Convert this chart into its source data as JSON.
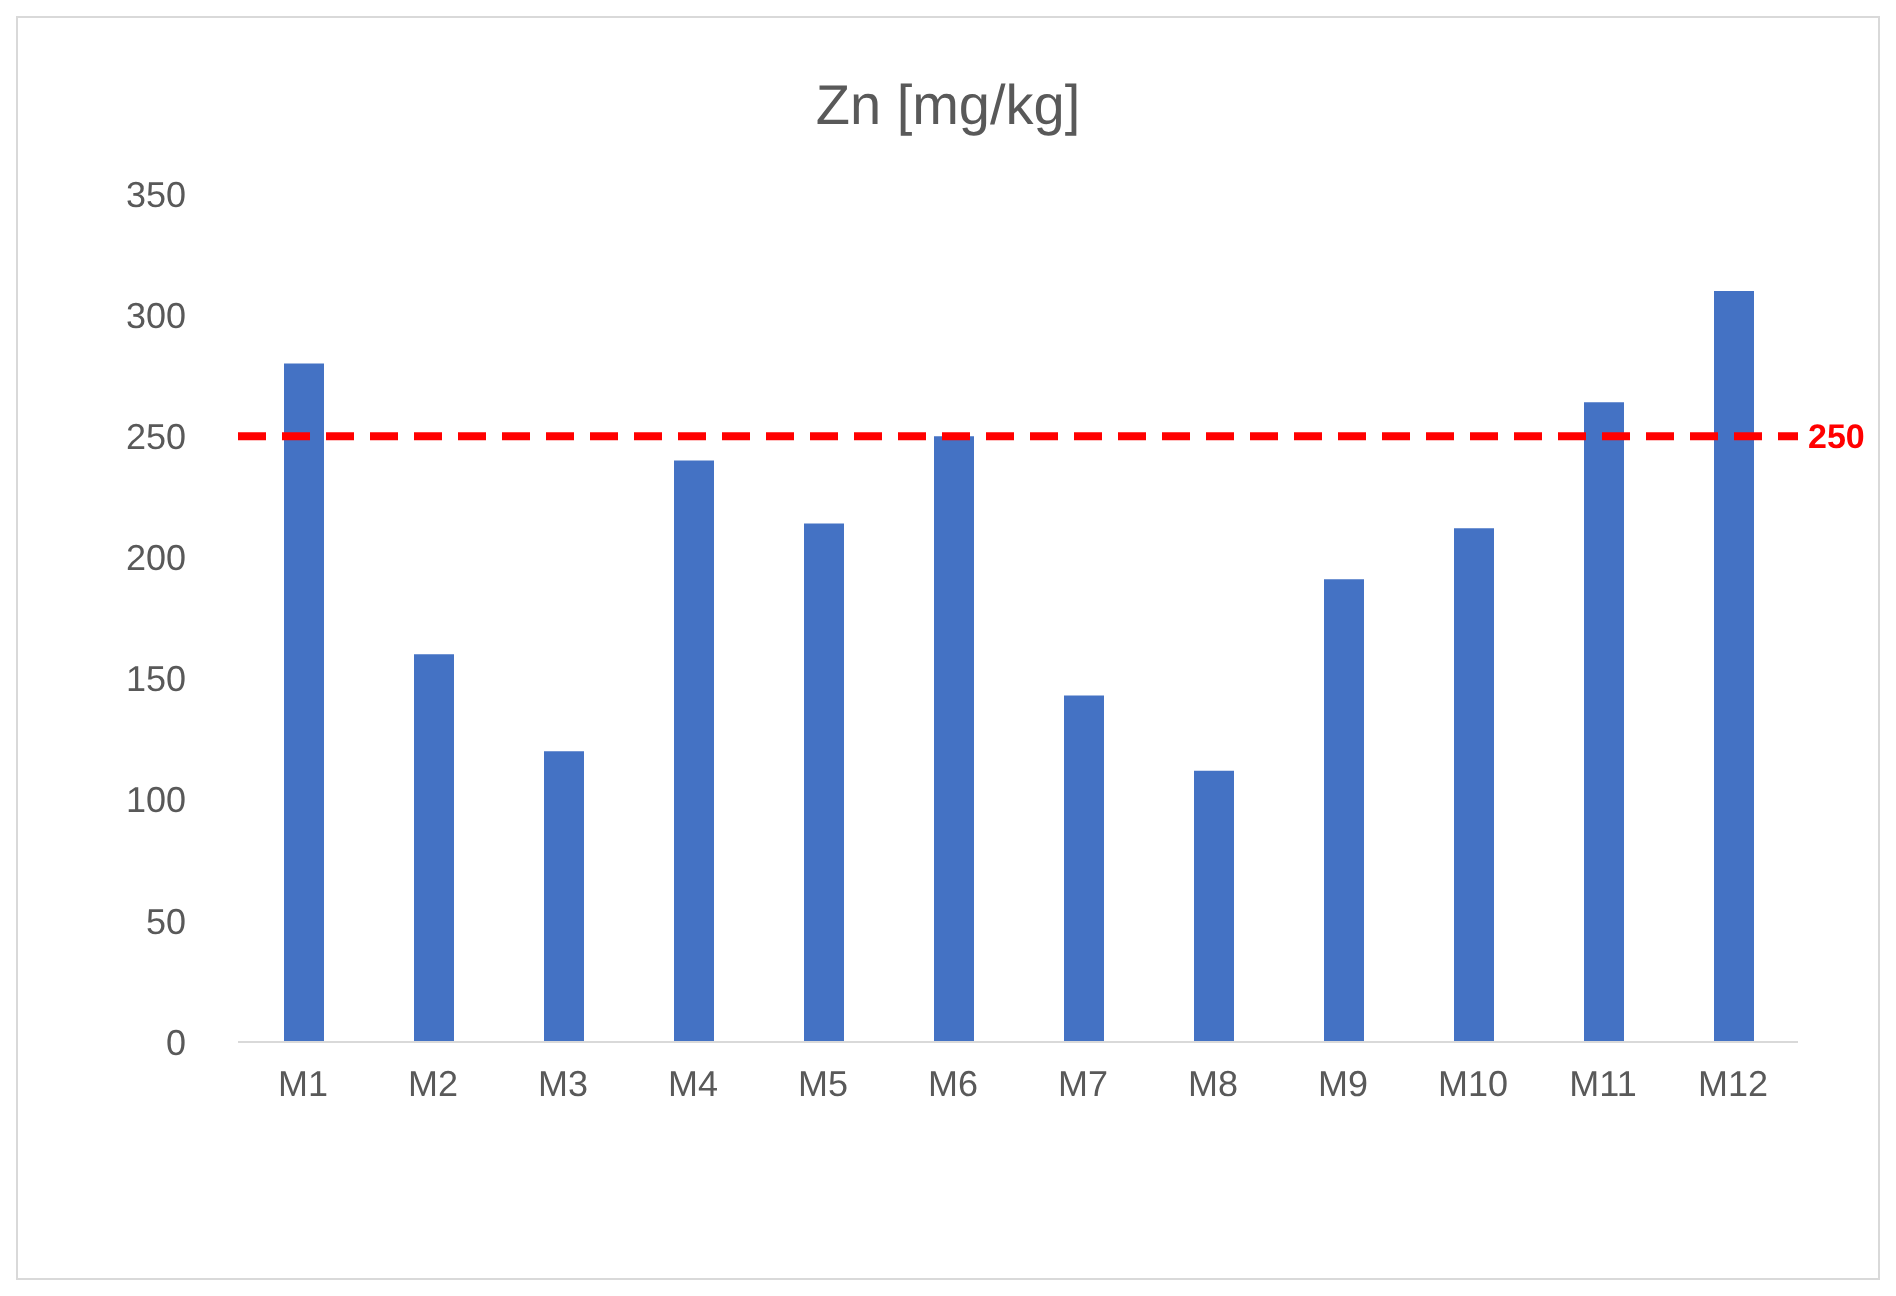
{
  "chart_data": {
    "type": "bar",
    "title": "Zn [mg/kg]",
    "categories": [
      "M1",
      "M2",
      "M3",
      "M4",
      "M5",
      "M6",
      "M7",
      "M8",
      "M9",
      "M10",
      "M11",
      "M12"
    ],
    "values": [
      280,
      160,
      120,
      240,
      214,
      250,
      143,
      112,
      191,
      212,
      264,
      310
    ],
    "color": "#4472c4",
    "ylim": [
      0,
      350
    ],
    "yticks": [
      0,
      50,
      100,
      150,
      200,
      250,
      300,
      350
    ],
    "grid": false,
    "legend": false,
    "ref_lines": [
      {
        "axis": "y",
        "value": 250,
        "label": "250",
        "color": "#ff0000",
        "line_style": "dashed"
      }
    ]
  }
}
